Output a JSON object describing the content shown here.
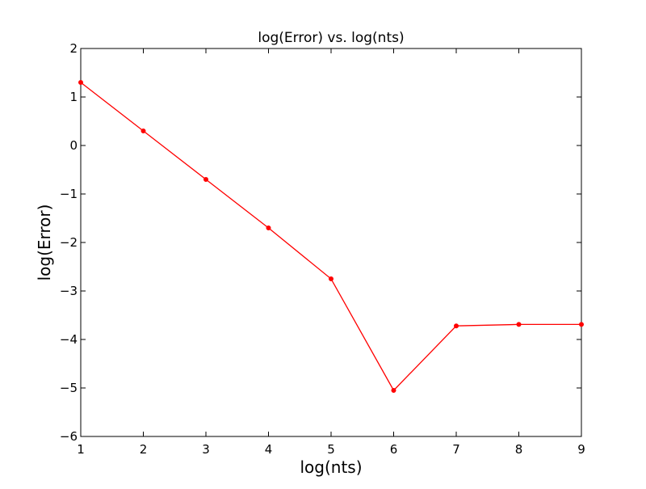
{
  "chart_data": {
    "type": "line",
    "title": "log(Error) vs. log(nts)",
    "xlabel": "log(nts)",
    "ylabel": "log(Error)",
    "xlim": [
      1,
      9
    ],
    "ylim": [
      -6,
      2
    ],
    "xticks": [
      1,
      2,
      3,
      4,
      5,
      6,
      7,
      8,
      9
    ],
    "yticks": [
      2,
      1,
      0,
      -1,
      -2,
      -3,
      -4,
      -5,
      -6
    ],
    "xtick_labels": [
      "1",
      "2",
      "3",
      "4",
      "5",
      "6",
      "7",
      "8",
      "9"
    ],
    "ytick_labels": [
      "2",
      "1",
      "0",
      "−1",
      "−2",
      "−3",
      "−4",
      "−5",
      "−6"
    ],
    "grid": false,
    "series": [
      {
        "color": "#ff0000",
        "marker": "dot",
        "x": [
          1,
          2,
          3,
          4,
          5,
          6,
          7,
          8,
          9
        ],
        "y": [
          1.3,
          0.3,
          -0.7,
          -1.7,
          -2.75,
          -5.05,
          -3.72,
          -3.69,
          -3.69
        ]
      }
    ]
  }
}
